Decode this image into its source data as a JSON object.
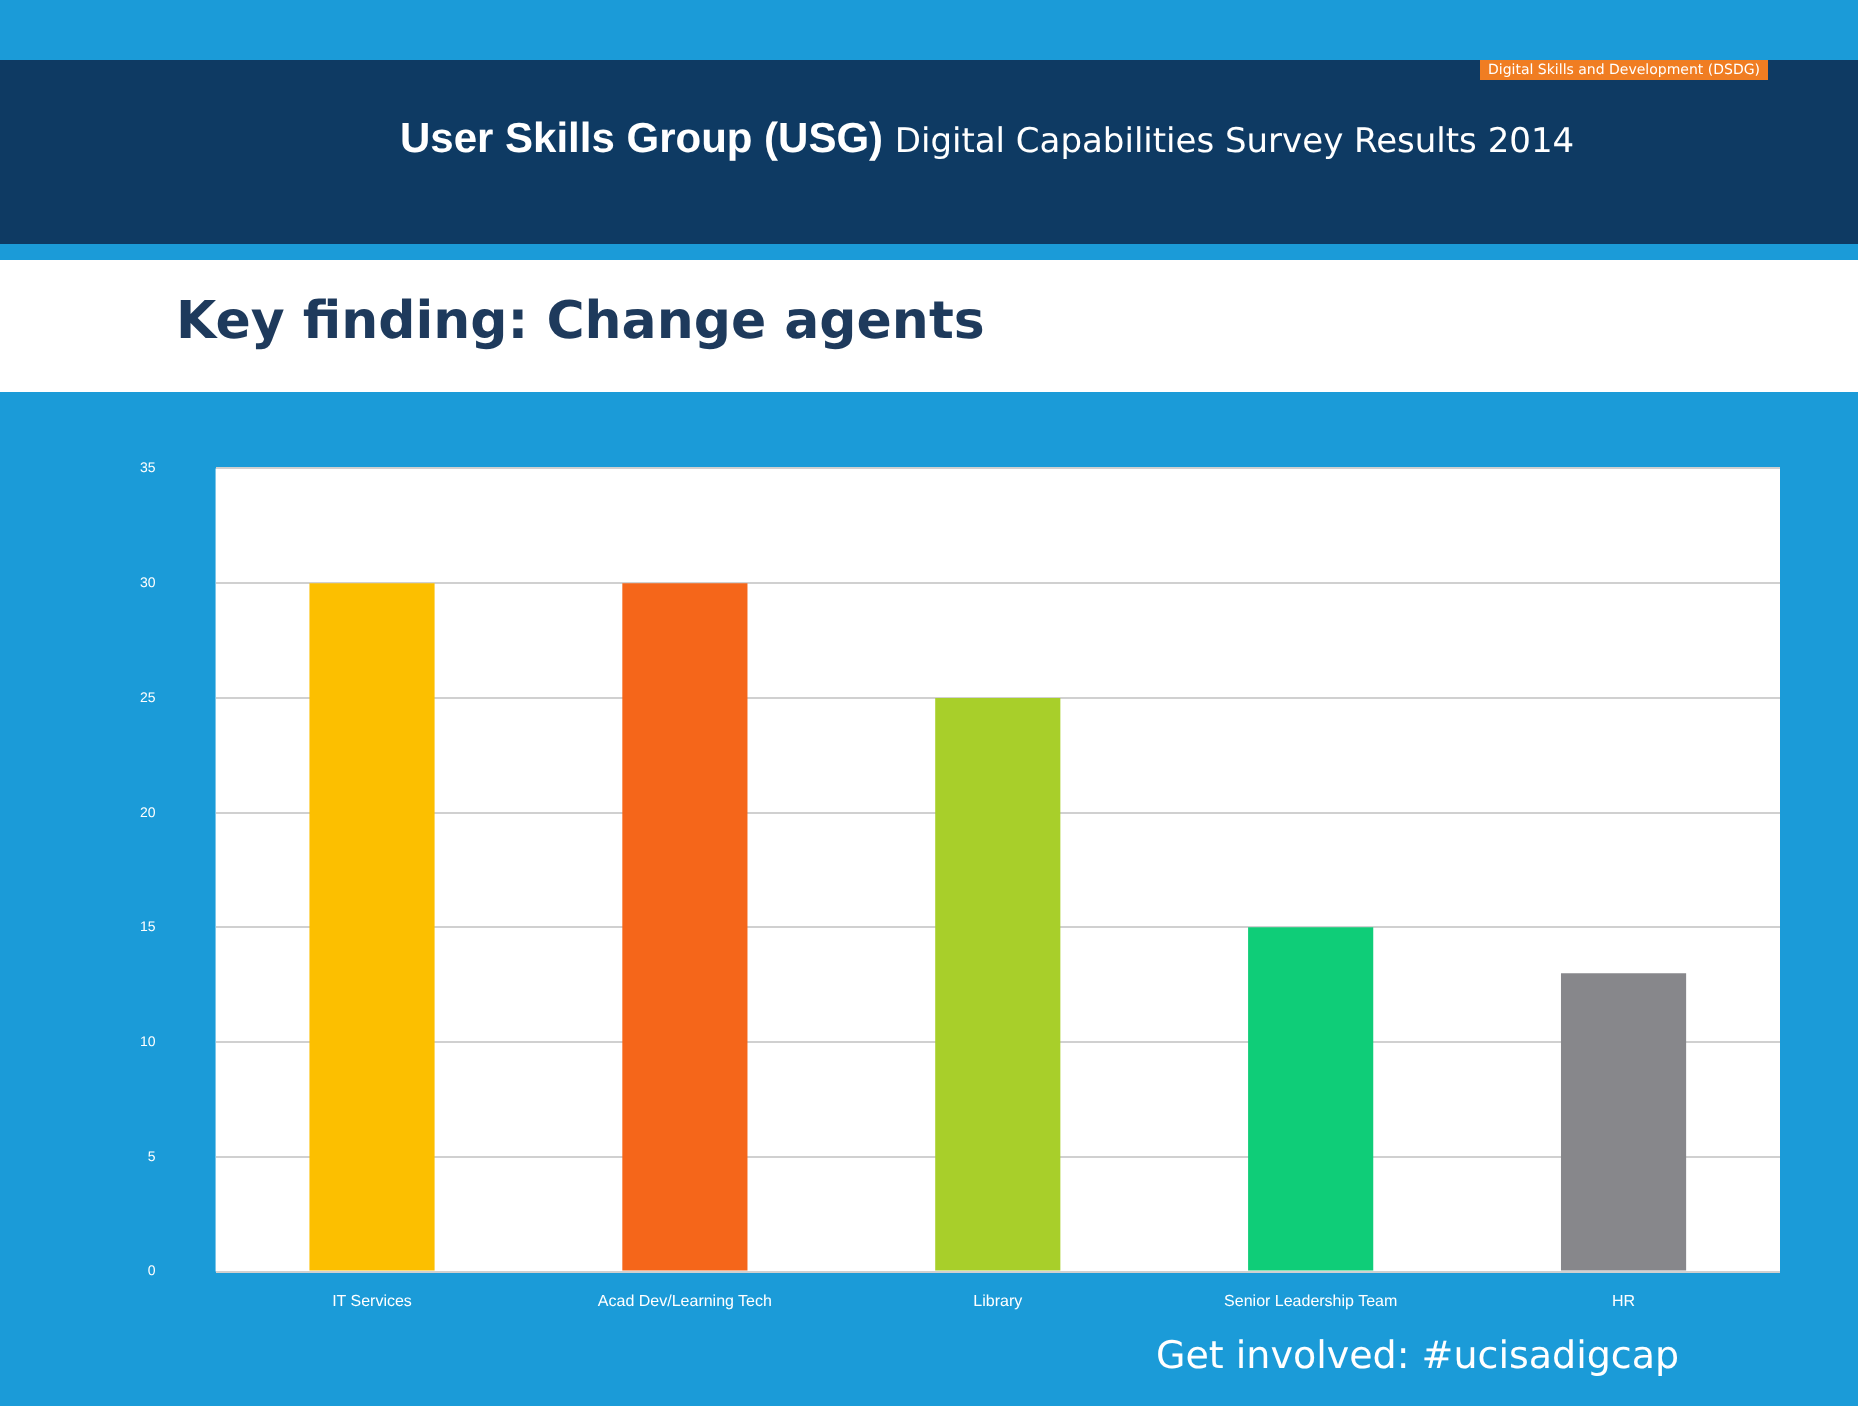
{
  "chart_data": {
    "type": "bar",
    "title": "Key finding: Change agents",
    "subtitle": "User Skills Group (USG) Digital Capabilities Survey Results 2014",
    "annotations": [
      "Digital Skills and Development (DSDG)",
      "Get involved: #ucisadigcap"
    ],
    "categories": [
      "IT Services",
      "Acad Dev/Learning Tech",
      "Library",
      "Senior Leadership Team",
      "HR"
    ],
    "values": [
      30,
      30,
      25,
      15,
      13
    ],
    "colors": [
      "#fcbf00",
      "#f5661a",
      "#a8cf2a",
      "#0fcd78",
      "#87878b"
    ],
    "ylim": [
      0,
      35
    ],
    "yticks": [
      0,
      5,
      10,
      15,
      20,
      25,
      30,
      35
    ],
    "grid": "y",
    "legend": false
  }
}
